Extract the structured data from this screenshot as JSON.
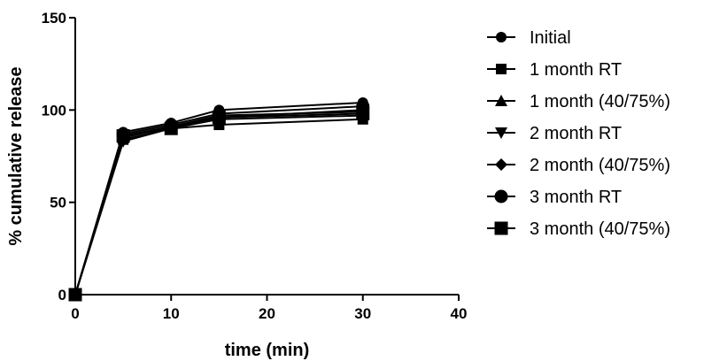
{
  "chart_data": {
    "type": "line",
    "xlabel": "time (min)",
    "ylabel": "% cumulative release",
    "xlim": [
      0,
      40
    ],
    "ylim": [
      0,
      150
    ],
    "xticks": [
      0,
      10,
      20,
      30,
      40
    ],
    "yticks": [
      0,
      50,
      100,
      150
    ],
    "grid": false,
    "legend_position": "right",
    "x": [
      0,
      5,
      10,
      15,
      30
    ],
    "series": [
      {
        "name": "Initial",
        "marker": "circle",
        "values": [
          0,
          88,
          93,
          100,
          104
        ]
      },
      {
        "name": "1 month RT",
        "marker": "square",
        "values": [
          0,
          84,
          90,
          92,
          95
        ]
      },
      {
        "name": "1 month (40/75%)",
        "marker": "triangle-up",
        "values": [
          0,
          85,
          91,
          97,
          99
        ]
      },
      {
        "name": "2 month RT",
        "marker": "triangle-down",
        "values": [
          0,
          83,
          90,
          95,
          97
        ]
      },
      {
        "name": "2 month (40/75%)",
        "marker": "diamond",
        "values": [
          0,
          86,
          91,
          96,
          100
        ]
      },
      {
        "name": "3 month RT",
        "marker": "circle-large",
        "values": [
          0,
          87,
          92,
          98,
          102
        ]
      },
      {
        "name": "3 month (40/75%)",
        "marker": "square-large",
        "values": [
          0,
          86,
          90,
          96,
          98
        ]
      }
    ]
  }
}
